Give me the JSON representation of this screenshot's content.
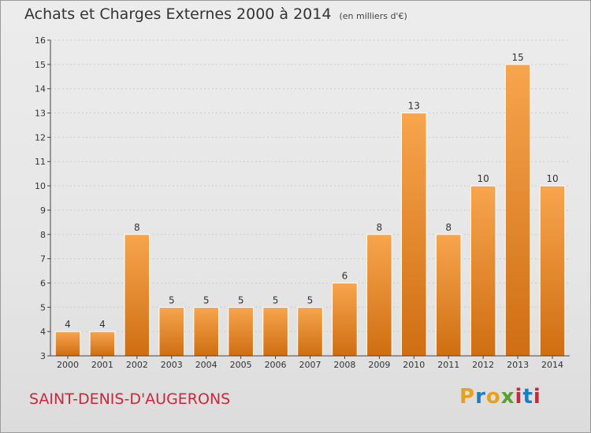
{
  "header": {
    "title": "Achats et Charges Externes 2000 à 2014",
    "subtitle": "(en milliers d'€)"
  },
  "footer": {
    "place": "SAINT-DENIS-D'AUGERONS",
    "brand": "Proxiti",
    "brand_colors": [
      "#e8a020",
      "#1a7fc0",
      "#e8a020",
      "#5aa02c",
      "#c8283c",
      "#1a7fc0",
      "#c8283c"
    ]
  },
  "colors": {
    "bar_light": "#f7a54e",
    "bar_dark": "#cf6e12",
    "bar_edge": "#ffffff",
    "axis": "#444444",
    "grid": "#cccccc"
  },
  "chart_data": {
    "type": "bar",
    "categories": [
      "2000",
      "2001",
      "2002",
      "2003",
      "2004",
      "2005",
      "2006",
      "2007",
      "2008",
      "2009",
      "2010",
      "2011",
      "2012",
      "2013",
      "2014"
    ],
    "values": [
      4,
      4,
      8,
      5,
      5,
      5,
      5,
      5,
      6,
      8,
      13,
      8,
      10,
      15,
      10
    ],
    "data_labels": [
      "4",
      "4",
      "8",
      "5",
      "5",
      "5",
      "5",
      "5",
      "6",
      "8",
      "13",
      "8",
      "10",
      "15",
      "10"
    ],
    "yticks": [
      "3",
      "4",
      "5",
      "6",
      "7",
      "8",
      "9",
      "10",
      "11",
      "12",
      "13",
      "14",
      "15",
      "16"
    ],
    "ylim": [
      3,
      16
    ],
    "grid": true
  }
}
